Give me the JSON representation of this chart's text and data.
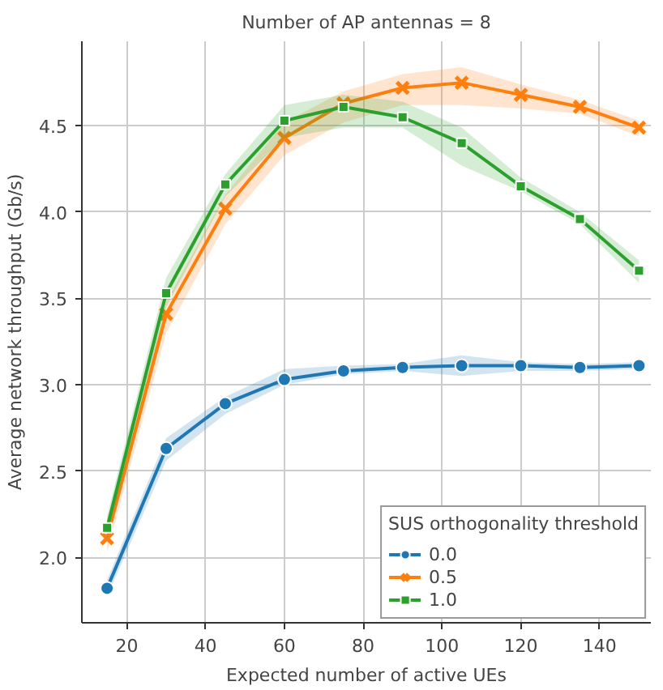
{
  "chart_data": {
    "type": "line",
    "title": "Number of AP antennas = 8",
    "xlabel": "Expected number of active UEs",
    "ylabel": "Average network throughput (Gb/s)",
    "legend_title": "SUS orthogonality threshold",
    "x": [
      15,
      30,
      45,
      60,
      75,
      90,
      105,
      120,
      135,
      150
    ],
    "series": [
      {
        "name": "0.0",
        "color": "#1f77b4",
        "marker": "circle",
        "values": [
          1.82,
          2.63,
          2.89,
          3.03,
          3.08,
          3.1,
          3.11,
          3.11,
          3.1,
          3.11
        ],
        "lower": [
          1.77,
          2.56,
          2.83,
          3.0,
          3.06,
          3.08,
          3.05,
          3.08,
          3.08,
          3.09
        ],
        "upper": [
          1.87,
          2.69,
          2.93,
          3.09,
          3.11,
          3.12,
          3.17,
          3.13,
          3.12,
          3.13
        ]
      },
      {
        "name": "0.5",
        "color": "#ff7f0e",
        "marker": "cross",
        "values": [
          2.11,
          3.41,
          4.02,
          4.43,
          4.63,
          4.72,
          4.75,
          4.68,
          4.61,
          4.49
        ],
        "lower": [
          2.03,
          3.3,
          3.93,
          4.33,
          4.52,
          4.62,
          4.62,
          4.6,
          4.57,
          4.44
        ],
        "upper": [
          2.18,
          3.48,
          4.1,
          4.52,
          4.7,
          4.8,
          4.84,
          4.74,
          4.65,
          4.53
        ]
      },
      {
        "name": "1.0",
        "color": "#2ca02c",
        "marker": "square",
        "values": [
          2.17,
          3.53,
          4.16,
          4.53,
          4.61,
          4.55,
          4.4,
          4.15,
          3.96,
          3.66
        ],
        "lower": [
          2.1,
          3.45,
          4.09,
          4.43,
          4.49,
          4.49,
          4.27,
          4.12,
          3.93,
          3.59
        ],
        "upper": [
          2.24,
          3.62,
          4.22,
          4.62,
          4.68,
          4.64,
          4.49,
          4.2,
          4.0,
          3.72
        ]
      }
    ],
    "xlim": [
      8.6,
      153
    ],
    "ylim": [
      1.62,
      4.99
    ],
    "xticks": [
      20,
      40,
      60,
      80,
      100,
      120,
      140
    ],
    "yticks": [
      {
        "value": 2,
        "label": "2.0"
      },
      {
        "value": 2.5,
        "label": "2.5"
      },
      {
        "value": 3,
        "label": "3.0"
      },
      {
        "value": 3.5,
        "label": "3.5"
      },
      {
        "value": 4,
        "label": "4.0"
      },
      {
        "value": 4.5,
        "label": "4.5"
      }
    ],
    "grid": true,
    "legend": "bottom right",
    "line_style": "solid"
  }
}
